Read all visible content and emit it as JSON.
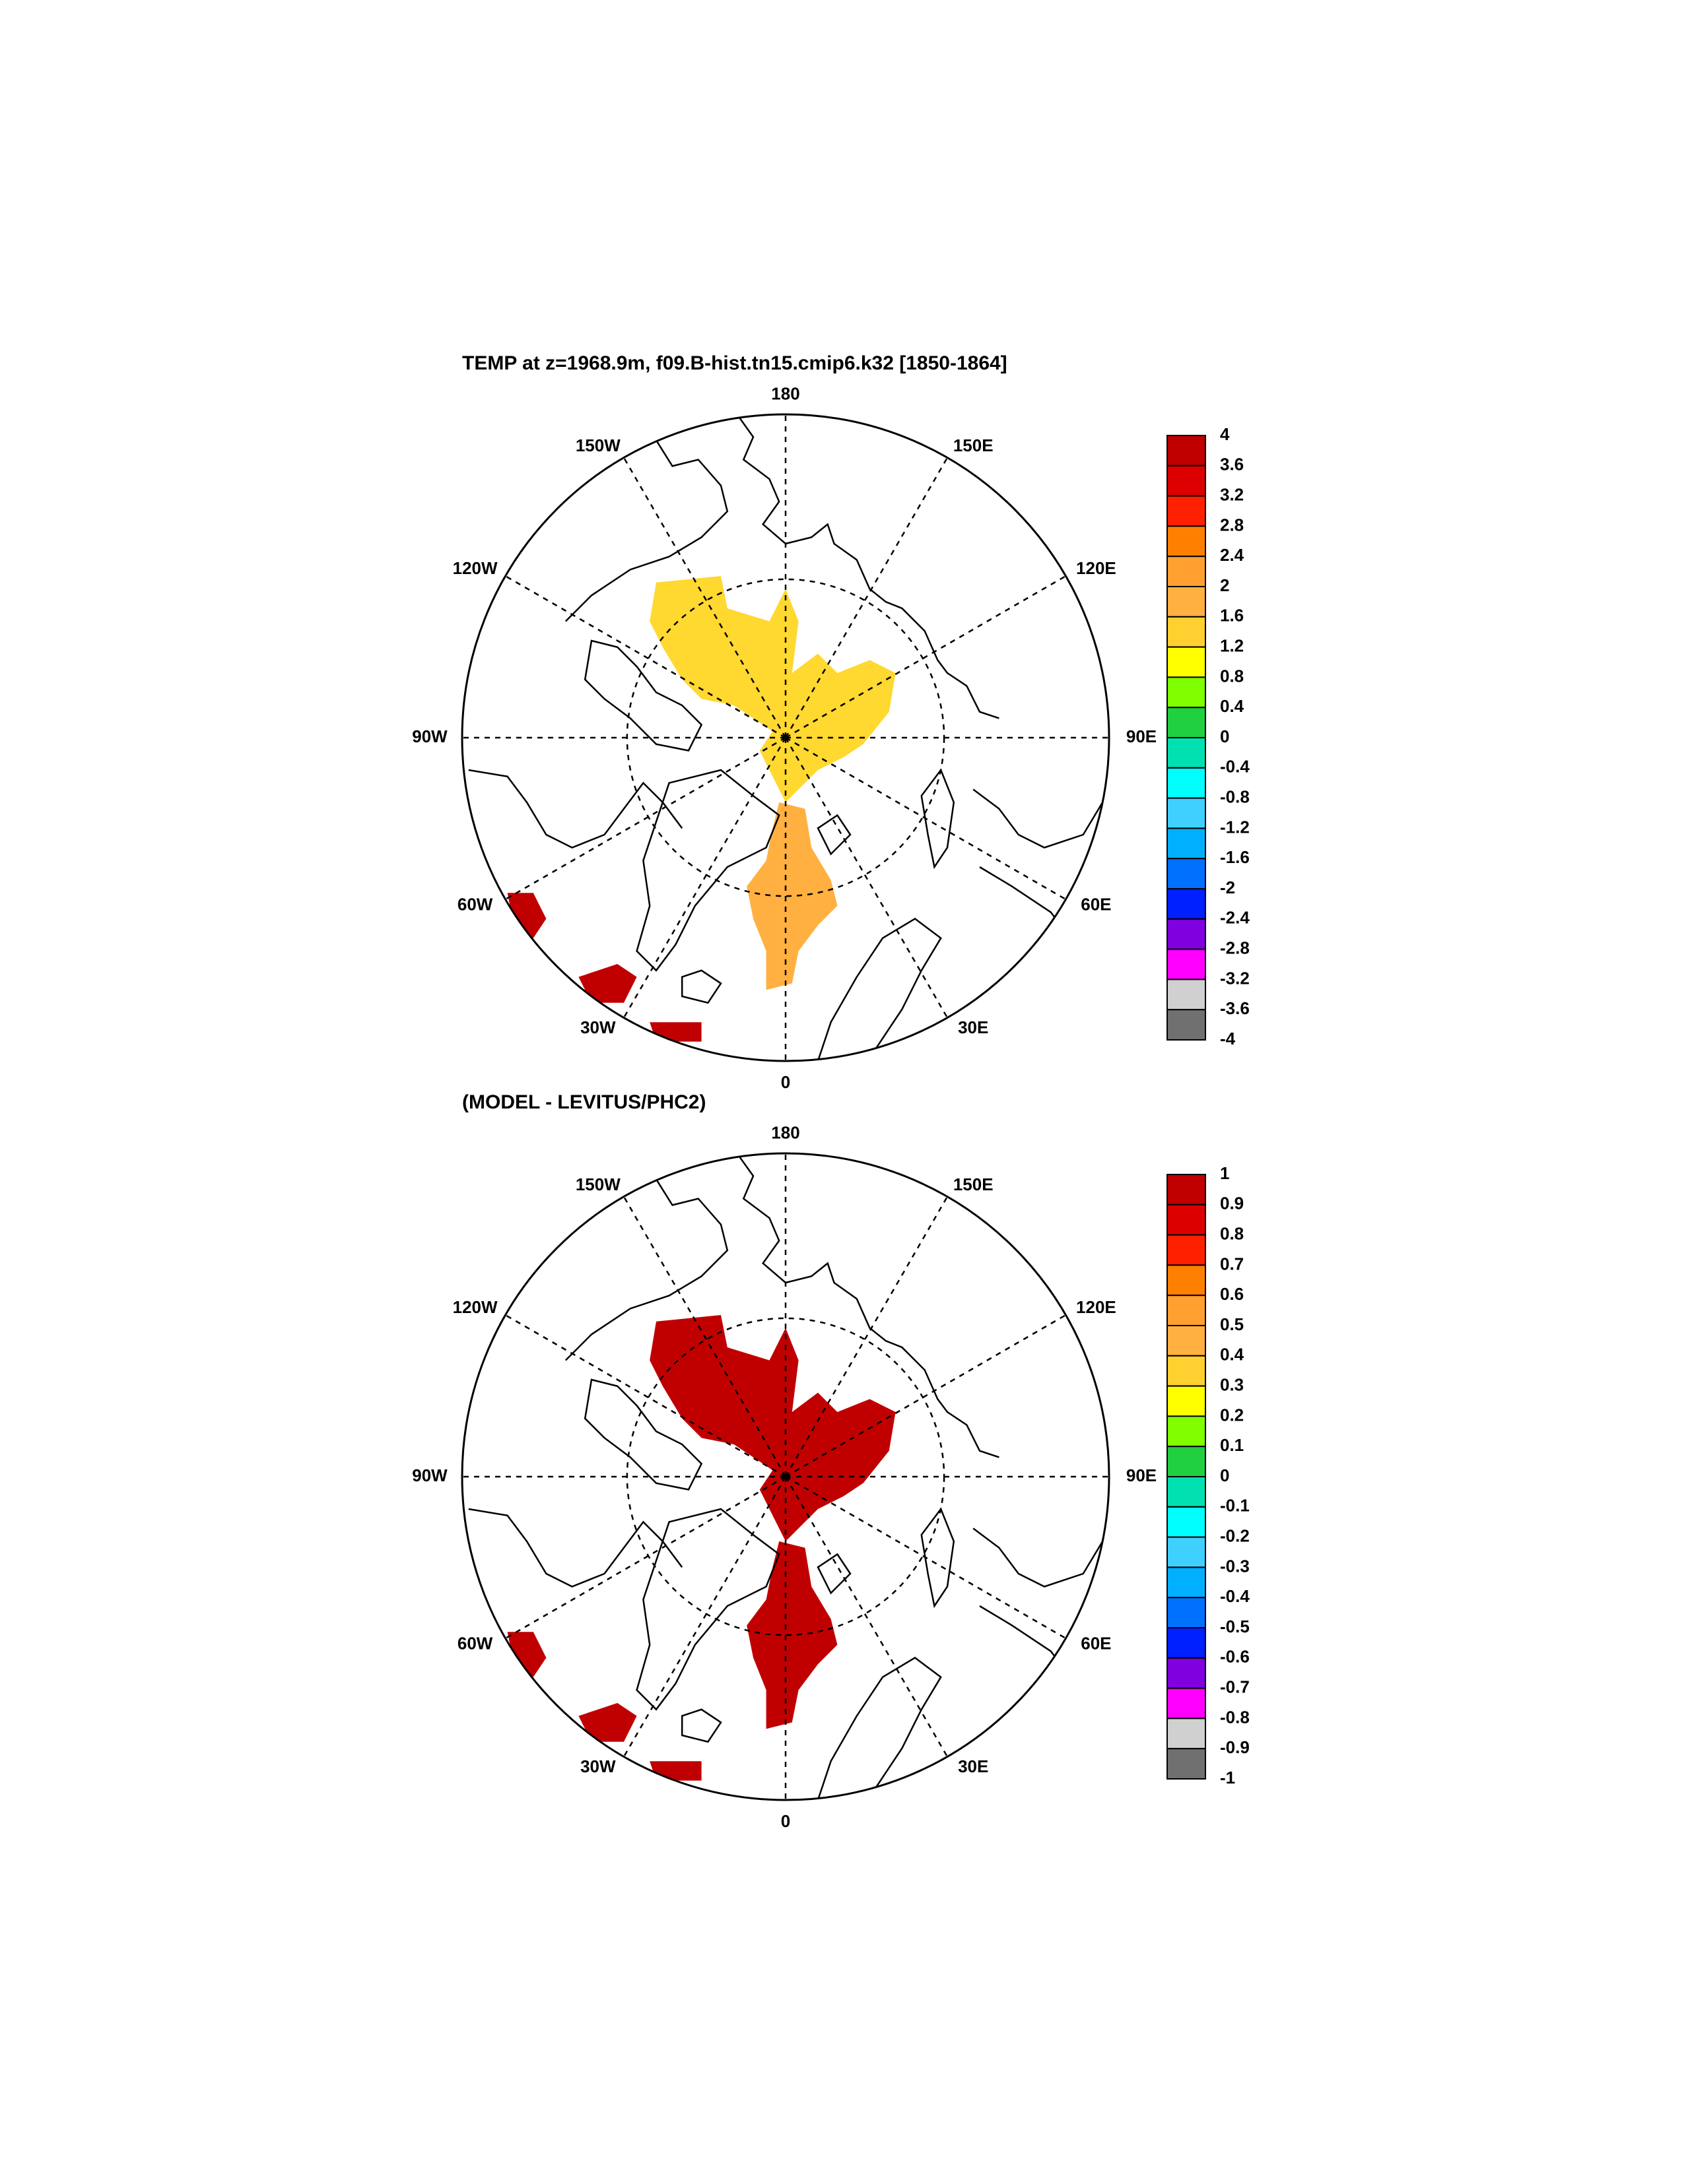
{
  "panels": [
    {
      "id": "top",
      "title": "TEMP at z=1968.9m, f09.B-hist.tn15.cmip6.k32 [1850-1864]",
      "labels": {
        "top": "180",
        "bottom": "0",
        "upper_left": "150W",
        "upper_right": "150E",
        "mid_upper_left": "120W",
        "mid_upper_right": "120E",
        "left": "90W",
        "right": "90E",
        "mid_lower_left": "60W",
        "mid_lower_right": "60E",
        "lower_left": "30W",
        "lower_right": "30E"
      },
      "colorbar": {
        "values": [
          "4",
          "3.6",
          "3.2",
          "2.8",
          "2.4",
          "2",
          "1.6",
          "1.2",
          "0.8",
          "0.4",
          "0",
          "-0.4",
          "-0.8",
          "-1.2",
          "-1.6",
          "-2",
          "-2.4",
          "-2.8",
          "-3.2",
          "-3.6",
          "-4"
        ],
        "colors": [
          "#c00000",
          "#dc0000",
          "#ff2000",
          "#ff8000",
          "#ffa030",
          "#ffb040",
          "#ffd030",
          "#ffff00",
          "#80ff00",
          "#20d040",
          "#00e0b0",
          "#00ffff",
          "#40d0ff",
          "#00b0ff",
          "#0070ff",
          "#0020ff",
          "#8000e0",
          "#ff00ff",
          "#d0d0d0",
          "#707070"
        ]
      },
      "fills": [
        {
          "name": "central-arctic",
          "color": "#ffd830"
        },
        {
          "name": "fram-strait",
          "color": "#ffb040"
        },
        {
          "name": "labrador-sea",
          "color": "#c00000"
        },
        {
          "name": "irminger-sea",
          "color": "#c00000"
        },
        {
          "name": "iceland-basin",
          "color": "#c00000"
        }
      ]
    },
    {
      "id": "bottom",
      "title": "(MODEL - LEVITUS/PHC2)",
      "labels": {
        "top": "180",
        "bottom": "0",
        "upper_left": "150W",
        "upper_right": "150E",
        "mid_upper_left": "120W",
        "mid_upper_right": "120E",
        "left": "90W",
        "right": "90E",
        "mid_lower_left": "60W",
        "mid_lower_right": "60E",
        "lower_left": "30W",
        "lower_right": "30E"
      },
      "colorbar": {
        "values": [
          "1",
          "0.9",
          "0.8",
          "0.7",
          "0.6",
          "0.5",
          "0.4",
          "0.3",
          "0.2",
          "0.1",
          "0",
          "-0.1",
          "-0.2",
          "-0.3",
          "-0.4",
          "-0.5",
          "-0.6",
          "-0.7",
          "-0.8",
          "-0.9",
          "-1"
        ],
        "colors": [
          "#c00000",
          "#dc0000",
          "#ff2000",
          "#ff8000",
          "#ffa030",
          "#ffb040",
          "#ffd030",
          "#ffff00",
          "#80ff00",
          "#20d040",
          "#00e0b0",
          "#00ffff",
          "#40d0ff",
          "#00b0ff",
          "#0070ff",
          "#0020ff",
          "#8000e0",
          "#ff00ff",
          "#d0d0d0",
          "#707070"
        ]
      },
      "fills": [
        {
          "name": "central-arctic",
          "color": "#c00000"
        },
        {
          "name": "fram-strait",
          "color": "#c00000"
        },
        {
          "name": "labrador-sea",
          "color": "#c00000"
        },
        {
          "name": "irminger-sea",
          "color": "#c00000"
        },
        {
          "name": "iceland-basin",
          "color": "#c00000"
        }
      ]
    }
  ]
}
